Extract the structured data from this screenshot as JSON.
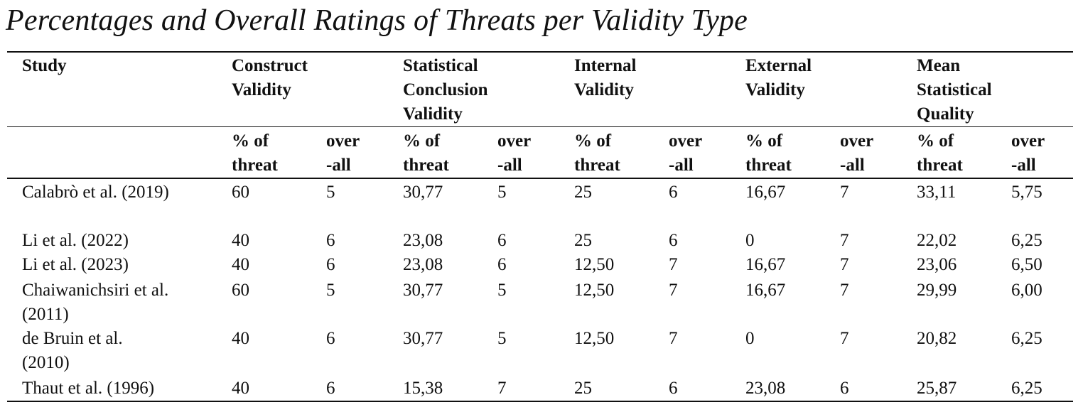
{
  "caption": "Percentages and Overall Ratings of Threats per Validity Type",
  "header": {
    "study": "Study",
    "groups": [
      {
        "lines": [
          "Construct",
          "Validity"
        ]
      },
      {
        "lines": [
          "Statistical",
          "Conclusion",
          "Validity"
        ]
      },
      {
        "lines": [
          "Internal",
          "Validity"
        ]
      },
      {
        "lines": [
          "External",
          "Validity"
        ]
      },
      {
        "lines": [
          "Mean",
          "Statistical",
          "Quality"
        ]
      }
    ],
    "sub_threat": [
      "% of",
      "threat"
    ],
    "sub_overall": [
      "over",
      "-all"
    ]
  },
  "rows": [
    {
      "study": [
        "Calabrò et al. (2019)"
      ],
      "values": [
        "60",
        "5",
        "30,77",
        "5",
        "25",
        "6",
        "16,67",
        "7",
        "33,11",
        "5,75"
      ]
    },
    {
      "study": [
        "Li et al. (2022)"
      ],
      "values": [
        "40",
        "6",
        "23,08",
        "6",
        "25",
        "6",
        "0",
        "7",
        "22,02",
        "6,25"
      ]
    },
    {
      "study": [
        "Li et al. (2023)"
      ],
      "values": [
        "40",
        "6",
        "23,08",
        "6",
        "12,50",
        "7",
        "16,67",
        "7",
        "23,06",
        "6,50"
      ]
    },
    {
      "study": [
        "Chaiwanichsiri et al.",
        "(2011)"
      ],
      "values": [
        "60",
        "5",
        "30,77",
        "5",
        "12,50",
        "7",
        "16,67",
        "7",
        "29,99",
        "6,00"
      ]
    },
    {
      "study": [
        "de Bruin et al.",
        "(2010)"
      ],
      "values": [
        "40",
        "6",
        "30,77",
        "5",
        "12,50",
        "7",
        "0",
        "7",
        "20,82",
        "6,25"
      ]
    },
    {
      "study": [
        "Thaut et al. (1996)"
      ],
      "values": [
        "40",
        "6",
        "15,38",
        "7",
        "25",
        "6",
        "23,08",
        "6",
        "25,87",
        "6,25"
      ]
    }
  ]
}
